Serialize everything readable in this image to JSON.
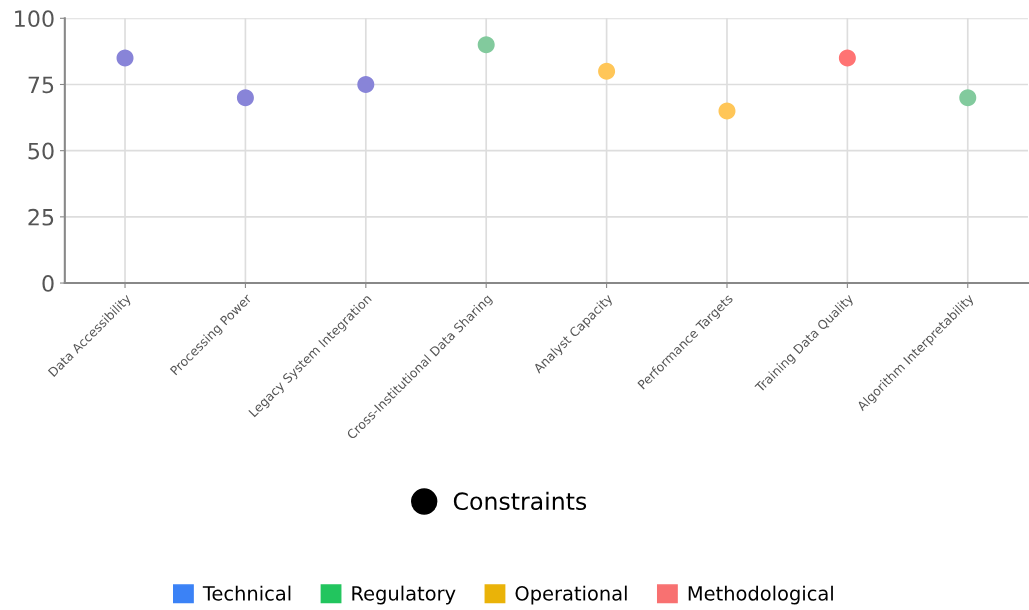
{
  "chart_data": {
    "type": "scatter",
    "categories": [
      "Data Accessibility",
      "Processing Power",
      "Legacy System Integration",
      "Cross-Institutional Data Sharing",
      "Analyst Capacity",
      "Performance Targets",
      "Training Data Quality",
      "Algorithm Interpretability"
    ],
    "series": [
      {
        "name": "Constraints",
        "color": "#000000",
        "colors": [
          "#8884d8",
          "#8884d8",
          "#8884d8",
          "#82ca9d",
          "#ffc658",
          "#ffc658",
          "#ff7373",
          "#82ca9d"
        ],
        "values": [
          85,
          70,
          75,
          90,
          80,
          65,
          85,
          70
        ]
      },
      {
        "name": "Technical",
        "color": "#3b82f6",
        "values": [
          null,
          null,
          null,
          null,
          null,
          null,
          null,
          null
        ]
      },
      {
        "name": "Regulatory",
        "color": "#22c55e",
        "values": [
          null,
          null,
          null,
          null,
          null,
          null,
          null,
          null
        ]
      },
      {
        "name": "Operational",
        "color": "#eab308",
        "values": [
          null,
          null,
          null,
          null,
          null,
          null,
          null,
          null
        ]
      },
      {
        "name": "Methodological",
        "color": "#f87171",
        "values": [
          null,
          null,
          null,
          null,
          null,
          null,
          null,
          null
        ]
      }
    ],
    "ylim": [
      0,
      100
    ],
    "yticks": [
      0,
      25,
      50,
      75,
      100
    ],
    "grid": true,
    "legend": "bottom",
    "marker": "circle"
  }
}
